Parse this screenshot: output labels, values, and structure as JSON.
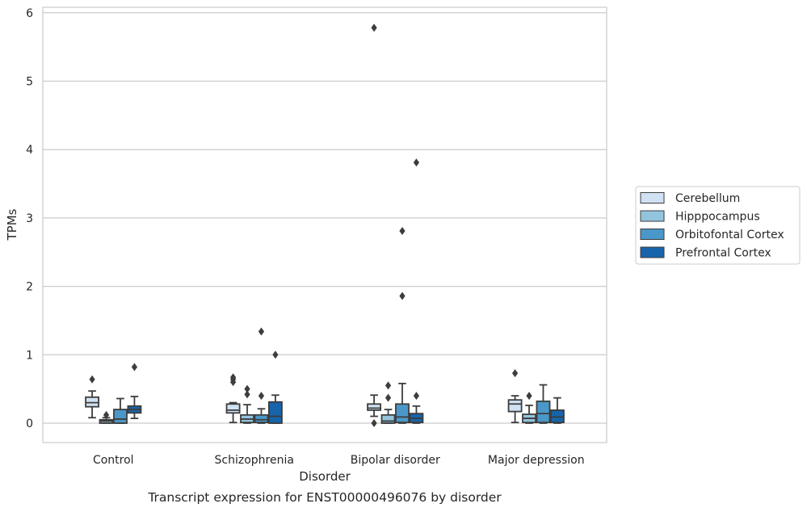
{
  "chart_data": {
    "type": "box",
    "title": "",
    "caption": "Transcript expression for ENST00000496076 by disorder",
    "xlabel": "Disorder",
    "ylabel": "TPMs",
    "ylim": [
      -0.28,
      6.07
    ],
    "yticks": [
      0,
      1,
      2,
      3,
      4,
      5,
      6
    ],
    "grid": true,
    "legend_position": "right",
    "categories": [
      "Control",
      "Schizophrenia",
      "Bipolar disorder",
      "Major depression"
    ],
    "series": [
      {
        "name": "Cerebellum",
        "color": "#cfe1f2",
        "boxes": [
          {
            "whislo": 0.08,
            "q1": 0.24,
            "med": 0.3,
            "q3": 0.38,
            "whishi": 0.47,
            "fliers": [
              0.64
            ]
          },
          {
            "whislo": 0.01,
            "q1": 0.15,
            "med": 0.19,
            "q3": 0.28,
            "whishi": 0.3,
            "fliers": [
              0.6,
              0.64,
              0.67
            ]
          },
          {
            "whislo": 0.1,
            "q1": 0.19,
            "med": 0.22,
            "q3": 0.28,
            "whishi": 0.41,
            "fliers": [
              0.0,
              5.78
            ]
          },
          {
            "whislo": 0.01,
            "q1": 0.17,
            "med": 0.28,
            "q3": 0.34,
            "whishi": 0.4,
            "fliers": [
              0.73
            ]
          }
        ]
      },
      {
        "name": "Hipppocampus",
        "color": "#93c4de",
        "boxes": [
          {
            "whislo": 0.0,
            "q1": 0.0,
            "med": 0.03,
            "q3": 0.05,
            "whishi": 0.08,
            "fliers": [
              0.12
            ]
          },
          {
            "whislo": 0.0,
            "q1": 0.01,
            "med": 0.06,
            "q3": 0.12,
            "whishi": 0.27,
            "fliers": [
              0.42,
              0.5
            ]
          },
          {
            "whislo": 0.0,
            "q1": 0.0,
            "med": 0.03,
            "q3": 0.12,
            "whishi": 0.2,
            "fliers": [
              0.37,
              0.55
            ]
          },
          {
            "whislo": 0.0,
            "q1": 0.01,
            "med": 0.07,
            "q3": 0.13,
            "whishi": 0.26,
            "fliers": [
              0.4
            ]
          }
        ]
      },
      {
        "name": "Orbitofontal Cortex",
        "color": "#4a98c9",
        "boxes": [
          {
            "whislo": 0.0,
            "q1": 0.0,
            "med": 0.06,
            "q3": 0.2,
            "whishi": 0.36,
            "fliers": []
          },
          {
            "whislo": 0.0,
            "q1": 0.01,
            "med": 0.05,
            "q3": 0.12,
            "whishi": 0.21,
            "fliers": [
              0.4,
              1.34
            ]
          },
          {
            "whislo": 0.0,
            "q1": 0.01,
            "med": 0.09,
            "q3": 0.28,
            "whishi": 0.58,
            "fliers": [
              1.86,
              2.81
            ]
          },
          {
            "whislo": 0.0,
            "q1": 0.01,
            "med": 0.14,
            "q3": 0.32,
            "whishi": 0.56,
            "fliers": []
          }
        ]
      },
      {
        "name": "Prefrontal Cortex",
        "color": "#1764ab",
        "boxes": [
          {
            "whislo": 0.07,
            "q1": 0.15,
            "med": 0.2,
            "q3": 0.25,
            "whishi": 0.39,
            "fliers": [
              0.82
            ]
          },
          {
            "whislo": 0.0,
            "q1": 0.0,
            "med": 0.1,
            "q3": 0.31,
            "whishi": 0.41,
            "fliers": [
              1.0
            ]
          },
          {
            "whislo": 0.0,
            "q1": 0.01,
            "med": 0.07,
            "q3": 0.14,
            "whishi": 0.25,
            "fliers": [
              0.4,
              3.81
            ]
          },
          {
            "whislo": 0.0,
            "q1": 0.01,
            "med": 0.09,
            "q3": 0.19,
            "whishi": 0.37,
            "fliers": []
          }
        ]
      }
    ]
  }
}
